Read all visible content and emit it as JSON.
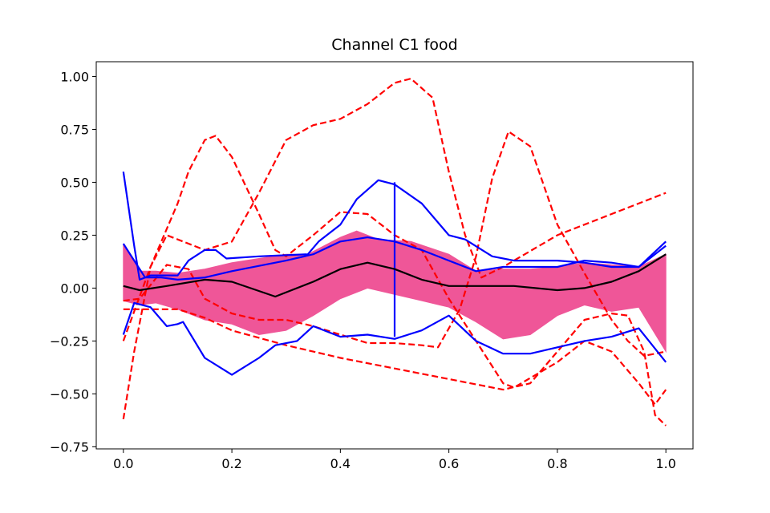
{
  "chart_data": {
    "type": "line",
    "title": "Channel C1 food",
    "xlabel": "",
    "ylabel": "",
    "xlim": [
      -0.05,
      1.05
    ],
    "ylim": [
      -0.76,
      1.07
    ],
    "grid": false,
    "x_ticks": [
      {
        "value": 0.0,
        "label": "0.0"
      },
      {
        "value": 0.2,
        "label": "0.2"
      },
      {
        "value": 0.4,
        "label": "0.4"
      },
      {
        "value": 0.6,
        "label": "0.6"
      },
      {
        "value": 0.8,
        "label": "0.8"
      },
      {
        "value": 1.0,
        "label": "1.0"
      }
    ],
    "y_ticks": [
      {
        "value": -0.75,
        "label": "−0.75"
      },
      {
        "value": -0.5,
        "label": "−0.50"
      },
      {
        "value": -0.25,
        "label": "−0.25"
      },
      {
        "value": 0.0,
        "label": "0.00"
      },
      {
        "value": 0.25,
        "label": "0.25"
      },
      {
        "value": 0.5,
        "label": "0.50"
      },
      {
        "value": 0.75,
        "label": "0.75"
      },
      {
        "value": 1.0,
        "label": "1.00"
      }
    ],
    "colors": {
      "band": "#ef5698",
      "envelope": "#0000ff",
      "outlier": "#ff0000",
      "median": "#000000"
    },
    "band": {
      "upper": [
        [
          0,
          0.2
        ],
        [
          0.03,
          0.08
        ],
        [
          0.06,
          0.08
        ],
        [
          0.1,
          0.07
        ],
        [
          0.15,
          0.09
        ],
        [
          0.2,
          0.12
        ],
        [
          0.3,
          0.16
        ],
        [
          0.34,
          0.16
        ],
        [
          0.4,
          0.24
        ],
        [
          0.43,
          0.27
        ],
        [
          0.47,
          0.23
        ],
        [
          0.53,
          0.22
        ],
        [
          0.6,
          0.16
        ],
        [
          0.65,
          0.08
        ],
        [
          0.7,
          0.09
        ],
        [
          0.75,
          0.09
        ],
        [
          0.8,
          0.1
        ],
        [
          0.85,
          0.12
        ],
        [
          0.9,
          0.11
        ],
        [
          0.95,
          0.1
        ],
        [
          1.0,
          0.16
        ]
      ],
      "lower": [
        [
          0,
          -0.06
        ],
        [
          0.03,
          -0.08
        ],
        [
          0.06,
          -0.07
        ],
        [
          0.1,
          -0.1
        ],
        [
          0.15,
          -0.15
        ],
        [
          0.2,
          -0.17
        ],
        [
          0.25,
          -0.22
        ],
        [
          0.3,
          -0.2
        ],
        [
          0.35,
          -0.13
        ],
        [
          0.4,
          -0.05
        ],
        [
          0.45,
          0.0
        ],
        [
          0.5,
          -0.03
        ],
        [
          0.55,
          -0.06
        ],
        [
          0.6,
          -0.09
        ],
        [
          0.65,
          -0.16
        ],
        [
          0.7,
          -0.24
        ],
        [
          0.75,
          -0.22
        ],
        [
          0.8,
          -0.13
        ],
        [
          0.85,
          -0.08
        ],
        [
          0.9,
          -0.11
        ],
        [
          0.95,
          -0.09
        ],
        [
          1.0,
          -0.3
        ]
      ]
    },
    "series": [
      {
        "role": "median",
        "style": "solid",
        "points": [
          [
            0,
            0.01
          ],
          [
            0.03,
            -0.01
          ],
          [
            0.08,
            0.01
          ],
          [
            0.15,
            0.04
          ],
          [
            0.2,
            0.03
          ],
          [
            0.28,
            -0.04
          ],
          [
            0.35,
            0.03
          ],
          [
            0.4,
            0.09
          ],
          [
            0.45,
            0.12
          ],
          [
            0.5,
            0.09
          ],
          [
            0.55,
            0.04
          ],
          [
            0.6,
            0.01
          ],
          [
            0.65,
            0.01
          ],
          [
            0.72,
            0.01
          ],
          [
            0.8,
            -0.01
          ],
          [
            0.85,
            0.0
          ],
          [
            0.9,
            0.03
          ],
          [
            0.95,
            0.08
          ],
          [
            1.0,
            0.16
          ]
        ]
      },
      {
        "role": "envelope",
        "style": "solid",
        "points": [
          [
            0,
            0.55
          ],
          [
            0.02,
            0.2
          ],
          [
            0.03,
            0.04
          ],
          [
            0.05,
            0.06
          ],
          [
            0.08,
            0.06
          ],
          [
            0.1,
            0.06
          ],
          [
            0.12,
            0.13
          ],
          [
            0.15,
            0.18
          ],
          [
            0.17,
            0.18
          ],
          [
            0.19,
            0.14
          ],
          [
            0.25,
            0.15
          ],
          [
            0.34,
            0.16
          ],
          [
            0.36,
            0.22
          ],
          [
            0.4,
            0.3
          ],
          [
            0.43,
            0.42
          ],
          [
            0.47,
            0.51
          ],
          [
            0.5,
            0.49
          ],
          [
            0.55,
            0.4
          ],
          [
            0.6,
            0.25
          ],
          [
            0.63,
            0.23
          ],
          [
            0.68,
            0.15
          ],
          [
            0.72,
            0.13
          ],
          [
            0.8,
            0.13
          ],
          [
            0.85,
            0.12
          ],
          [
            0.9,
            0.1
          ],
          [
            0.95,
            0.1
          ],
          [
            1.0,
            0.22
          ]
        ]
      },
      {
        "role": "envelope",
        "style": "solid",
        "points": [
          [
            0,
            -0.22
          ],
          [
            0.02,
            -0.07
          ],
          [
            0.05,
            -0.09
          ],
          [
            0.08,
            -0.18
          ],
          [
            0.1,
            -0.17
          ],
          [
            0.11,
            -0.16
          ],
          [
            0.15,
            -0.33
          ],
          [
            0.2,
            -0.41
          ],
          [
            0.25,
            -0.33
          ],
          [
            0.28,
            -0.27
          ],
          [
            0.32,
            -0.25
          ],
          [
            0.35,
            -0.18
          ],
          [
            0.4,
            -0.23
          ],
          [
            0.45,
            -0.22
          ],
          [
            0.5,
            -0.24
          ],
          [
            0.55,
            -0.2
          ],
          [
            0.6,
            -0.13
          ],
          [
            0.65,
            -0.25
          ],
          [
            0.7,
            -0.31
          ],
          [
            0.75,
            -0.31
          ],
          [
            0.8,
            -0.28
          ],
          [
            0.85,
            -0.25
          ],
          [
            0.9,
            -0.23
          ],
          [
            0.95,
            -0.19
          ],
          [
            1.0,
            -0.35
          ]
        ]
      },
      {
        "role": "envelope",
        "style": "solid",
        "points": [
          [
            0.5,
            0.5
          ],
          [
            0.5,
            -0.23
          ]
        ]
      },
      {
        "role": "envelope",
        "style": "solid",
        "points": [
          [
            0,
            0.21
          ],
          [
            0.02,
            0.13
          ],
          [
            0.04,
            0.05
          ],
          [
            0.07,
            0.05
          ],
          [
            0.1,
            0.04
          ],
          [
            0.15,
            0.05
          ],
          [
            0.2,
            0.08
          ],
          [
            0.3,
            0.13
          ],
          [
            0.35,
            0.16
          ],
          [
            0.4,
            0.22
          ],
          [
            0.45,
            0.24
          ],
          [
            0.5,
            0.22
          ],
          [
            0.55,
            0.18
          ],
          [
            0.6,
            0.13
          ],
          [
            0.65,
            0.08
          ],
          [
            0.7,
            0.1
          ],
          [
            0.8,
            0.1
          ],
          [
            0.85,
            0.13
          ],
          [
            0.9,
            0.12
          ],
          [
            0.95,
            0.1
          ],
          [
            1.0,
            0.2
          ]
        ]
      },
      {
        "role": "outlier",
        "style": "dashed",
        "points": [
          [
            0,
            -0.62
          ],
          [
            0.02,
            -0.3
          ],
          [
            0.05,
            0.1
          ],
          [
            0.1,
            0.4
          ],
          [
            0.12,
            0.55
          ],
          [
            0.15,
            0.7
          ],
          [
            0.17,
            0.72
          ],
          [
            0.2,
            0.62
          ],
          [
            0.25,
            0.35
          ],
          [
            0.28,
            0.18
          ],
          [
            0.3,
            0.15
          ],
          [
            0.35,
            0.25
          ],
          [
            0.4,
            0.36
          ],
          [
            0.45,
            0.35
          ],
          [
            0.5,
            0.25
          ],
          [
            0.55,
            0.18
          ],
          [
            0.6,
            -0.05
          ],
          [
            0.65,
            -0.25
          ],
          [
            0.7,
            -0.45
          ],
          [
            0.72,
            -0.47
          ],
          [
            0.8,
            -0.35
          ],
          [
            0.85,
            -0.25
          ],
          [
            0.9,
            -0.3
          ],
          [
            0.95,
            -0.45
          ],
          [
            0.98,
            -0.55
          ],
          [
            1.0,
            -0.48
          ]
        ]
      },
      {
        "role": "outlier",
        "style": "dashed",
        "points": [
          [
            0,
            -0.25
          ],
          [
            0.05,
            0.1
          ],
          [
            0.08,
            0.25
          ],
          [
            0.1,
            0.23
          ],
          [
            0.15,
            0.18
          ],
          [
            0.2,
            0.22
          ],
          [
            0.25,
            0.45
          ],
          [
            0.3,
            0.7
          ],
          [
            0.35,
            0.77
          ],
          [
            0.4,
            0.8
          ],
          [
            0.45,
            0.87
          ],
          [
            0.5,
            0.97
          ],
          [
            0.53,
            0.99
          ],
          [
            0.57,
            0.9
          ],
          [
            0.6,
            0.55
          ],
          [
            0.63,
            0.25
          ],
          [
            0.66,
            0.05
          ],
          [
            0.7,
            0.1
          ],
          [
            0.8,
            0.25
          ],
          [
            0.9,
            0.35
          ],
          [
            1.0,
            0.45
          ]
        ]
      },
      {
        "role": "outlier",
        "style": "dashed",
        "points": [
          [
            0,
            -0.06
          ],
          [
            0.03,
            -0.05
          ],
          [
            0.08,
            0.11
          ],
          [
            0.12,
            0.09
          ],
          [
            0.15,
            -0.05
          ],
          [
            0.2,
            -0.12
          ],
          [
            0.25,
            -0.15
          ],
          [
            0.3,
            -0.15
          ],
          [
            0.35,
            -0.18
          ],
          [
            0.4,
            -0.22
          ],
          [
            0.45,
            -0.26
          ],
          [
            0.5,
            -0.26
          ],
          [
            0.55,
            -0.27
          ],
          [
            0.58,
            -0.28
          ],
          [
            0.62,
            -0.1
          ],
          [
            0.65,
            0.15
          ],
          [
            0.68,
            0.52
          ],
          [
            0.71,
            0.74
          ],
          [
            0.75,
            0.67
          ],
          [
            0.8,
            0.3
          ],
          [
            0.85,
            0.07
          ],
          [
            0.9,
            -0.15
          ],
          [
            0.93,
            -0.25
          ],
          [
            0.96,
            -0.32
          ],
          [
            1.0,
            -0.3
          ]
        ]
      },
      {
        "role": "outlier",
        "style": "dashed",
        "points": [
          [
            0,
            -0.1
          ],
          [
            0.05,
            -0.1
          ],
          [
            0.1,
            -0.1
          ],
          [
            0.15,
            -0.14
          ],
          [
            0.2,
            -0.2
          ],
          [
            0.3,
            -0.27
          ],
          [
            0.4,
            -0.33
          ],
          [
            0.5,
            -0.38
          ],
          [
            0.6,
            -0.43
          ],
          [
            0.7,
            -0.48
          ],
          [
            0.75,
            -0.45
          ],
          [
            0.8,
            -0.3
          ],
          [
            0.85,
            -0.15
          ],
          [
            0.9,
            -0.12
          ],
          [
            0.93,
            -0.13
          ],
          [
            0.96,
            -0.3
          ],
          [
            0.98,
            -0.6
          ],
          [
            1.0,
            -0.65
          ]
        ]
      }
    ]
  }
}
